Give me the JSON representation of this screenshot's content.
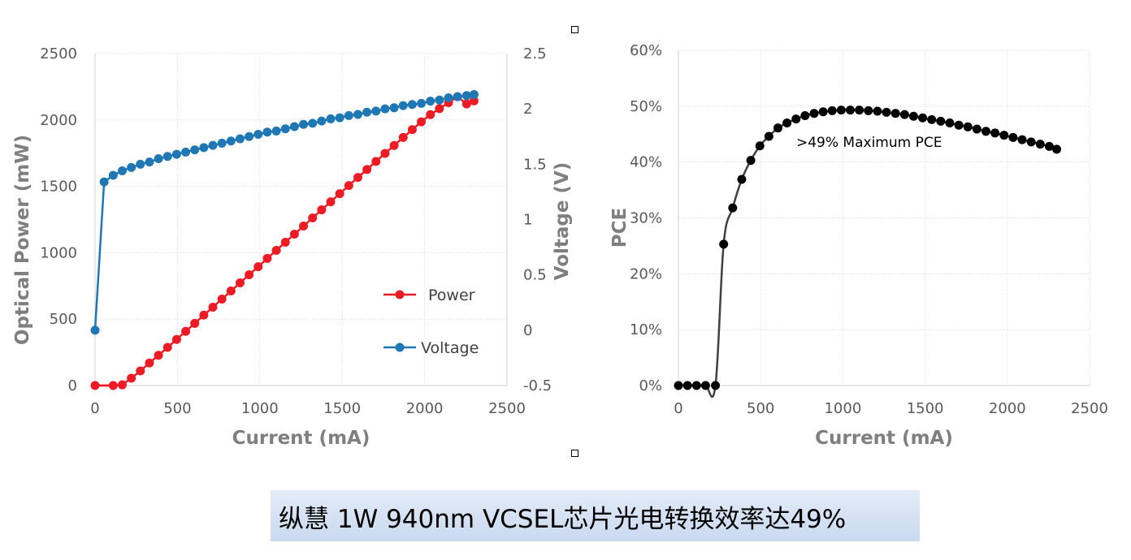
{
  "caption": "纵慧 1W 940nm VCSEL芯片光电转换效率达49%",
  "chart_data": [
    {
      "type": "line",
      "xlabel": "Current (mA)",
      "ylabel": "Optical Power (mW)",
      "y2label": "Voltage (V)",
      "xlim": [
        0,
        2500
      ],
      "ylim": [
        0,
        2500
      ],
      "y2lim": [
        -0.5,
        2.5
      ],
      "xticks": [
        "0",
        "500",
        "1000",
        "1500",
        "2000",
        "2500"
      ],
      "yticks": [
        "0",
        "500",
        "1000",
        "1500",
        "2000",
        "2500"
      ],
      "y2ticks": [
        "-0.5",
        "0",
        "0.5",
        "1",
        "1.5",
        "2",
        "2.5"
      ],
      "grid": true,
      "legend": "right-center",
      "series": [
        {
          "name": "Power",
          "axis": "left",
          "color": "#ed1c24",
          "x": [
            0,
            110,
            165,
            220,
            275,
            330,
            385,
            440,
            495,
            550,
            605,
            660,
            715,
            770,
            825,
            880,
            935,
            990,
            1045,
            1100,
            1155,
            1210,
            1265,
            1320,
            1375,
            1430,
            1485,
            1540,
            1595,
            1650,
            1705,
            1760,
            1815,
            1870,
            1925,
            1980,
            2035,
            2090,
            2145,
            2200,
            2255,
            2300
          ],
          "y": [
            0,
            0,
            5,
            55,
            110,
            170,
            228,
            287,
            347,
            408,
            468,
            530,
            590,
            651,
            712,
            773,
            834,
            895,
            957,
            1018,
            1079,
            1140,
            1201,
            1262,
            1323,
            1384,
            1445,
            1506,
            1567,
            1627,
            1688,
            1748,
            1808,
            1868,
            1927,
            1986,
            2040,
            2085,
            2130,
            2175,
            2120,
            2143
          ]
        },
        {
          "name": "Voltage",
          "axis": "right",
          "color": "#1f77b4",
          "x": [
            0,
            55,
            110,
            165,
            220,
            275,
            330,
            385,
            440,
            495,
            550,
            605,
            660,
            715,
            770,
            825,
            880,
            935,
            990,
            1045,
            1100,
            1155,
            1210,
            1265,
            1320,
            1375,
            1430,
            1485,
            1540,
            1595,
            1650,
            1705,
            1760,
            1815,
            1870,
            1925,
            1980,
            2035,
            2090,
            2145,
            2200,
            2255,
            2300
          ],
          "y": [
            0,
            1.34,
            1.4,
            1.44,
            1.47,
            1.5,
            1.52,
            1.55,
            1.57,
            1.59,
            1.61,
            1.63,
            1.65,
            1.67,
            1.69,
            1.71,
            1.73,
            1.75,
            1.77,
            1.79,
            1.8,
            1.82,
            1.84,
            1.86,
            1.87,
            1.89,
            1.91,
            1.92,
            1.94,
            1.95,
            1.97,
            1.98,
            2.0,
            2.01,
            2.03,
            2.04,
            2.05,
            2.07,
            2.08,
            2.1,
            2.11,
            2.12,
            2.13
          ]
        }
      ]
    },
    {
      "type": "line",
      "xlabel": "Current (mA)",
      "ylabel": "PCE",
      "xlim": [
        0,
        2500
      ],
      "ylim": [
        0,
        60
      ],
      "xticks": [
        "0",
        "500",
        "1000",
        "1500",
        "2000",
        "2500"
      ],
      "yticks": [
        "0%",
        "10%",
        "20%",
        "30%",
        "40%",
        "50%",
        "60%"
      ],
      "grid": true,
      "annotation": ">49% Maximum PCE",
      "series": [
        {
          "color": "#000000",
          "x": [
            0,
            55,
            110,
            165,
            225,
            275,
            330,
            385,
            440,
            495,
            550,
            605,
            660,
            715,
            770,
            825,
            880,
            935,
            990,
            1045,
            1100,
            1155,
            1210,
            1265,
            1320,
            1375,
            1430,
            1485,
            1540,
            1595,
            1650,
            1705,
            1760,
            1815,
            1870,
            1925,
            1980,
            2035,
            2090,
            2145,
            2200,
            2255,
            2300
          ],
          "y": [
            0,
            0,
            0,
            0,
            0,
            25.3,
            31.8,
            36.9,
            40.3,
            42.9,
            44.6,
            46.1,
            47.0,
            47.7,
            48.3,
            48.7,
            49.0,
            49.2,
            49.3,
            49.3,
            49.3,
            49.2,
            49.1,
            48.9,
            48.7,
            48.5,
            48.2,
            47.9,
            47.6,
            47.3,
            47.0,
            46.6,
            46.3,
            45.9,
            45.5,
            45.2,
            44.8,
            44.4,
            44.0,
            43.6,
            43.2,
            42.8,
            42.3
          ]
        }
      ]
    }
  ]
}
